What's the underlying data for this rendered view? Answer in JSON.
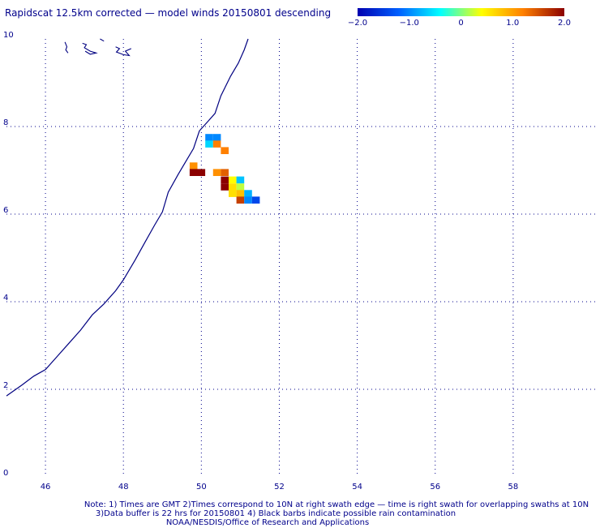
{
  "title": "Rapidscat 12.5km corrected — model winds 20150801 descending",
  "colorbar": {
    "tick_labels": [
      "−2.0",
      "−1.0",
      "0",
      "1.0",
      "2.0"
    ],
    "tick_values": [
      -2.0,
      -1.0,
      0,
      1.0,
      2.0
    ],
    "min": -2.0,
    "max": 2.0,
    "colors": [
      "#0000b0",
      "#0060ff",
      "#00ffff",
      "#ffff00",
      "#ff8000",
      "#8b0000"
    ]
  },
  "axes": {
    "x_ticks": [
      "46",
      "48",
      "50",
      "52",
      "54",
      "56",
      "58"
    ],
    "y_ticks": [
      "0",
      "2",
      "4",
      "6",
      "8",
      "10"
    ],
    "x_range": [
      45,
      59.5
    ],
    "y_range": [
      0,
      10
    ],
    "grid": true
  },
  "notes": {
    "line1": "Note: 1) Times are GMT 2)Times correspond to 10N at right swath edge — time is right swath for overlapping swaths at 10N",
    "line2": "3)Data buffer is 22 hrs for 20150801 4) Black barbs indicate possible rain contamination",
    "line3": "NOAA/NESDIS/Office of Research and Applications"
  },
  "coastline_lonlat": [
    [
      45.0,
      1.85
    ],
    [
      45.4,
      2.1
    ],
    [
      45.7,
      2.3
    ],
    [
      46.0,
      2.45
    ],
    [
      46.3,
      2.75
    ],
    [
      46.6,
      3.05
    ],
    [
      46.9,
      3.35
    ],
    [
      47.2,
      3.7
    ],
    [
      47.5,
      3.95
    ],
    [
      47.8,
      4.25
    ],
    [
      48.0,
      4.5
    ],
    [
      48.3,
      4.95
    ],
    [
      48.55,
      5.35
    ],
    [
      48.8,
      5.75
    ],
    [
      49.0,
      6.05
    ],
    [
      49.15,
      6.5
    ],
    [
      49.4,
      6.9
    ],
    [
      49.6,
      7.2
    ],
    [
      49.8,
      7.5
    ],
    [
      49.95,
      7.9
    ],
    [
      50.15,
      8.1
    ],
    [
      50.35,
      8.3
    ],
    [
      50.5,
      8.7
    ],
    [
      50.75,
      9.15
    ],
    [
      50.95,
      9.45
    ],
    [
      51.1,
      9.75
    ],
    [
      51.2,
      10.0
    ]
  ],
  "islands_lonlat": [
    [
      [
        46.5,
        9.93
      ],
      [
        46.55,
        9.82
      ],
      [
        46.52,
        9.75
      ],
      [
        46.58,
        9.68
      ]
    ],
    [
      [
        46.95,
        9.9
      ],
      [
        47.05,
        9.87
      ],
      [
        47.0,
        9.8
      ],
      [
        47.15,
        9.72
      ],
      [
        47.3,
        9.68
      ],
      [
        47.15,
        9.65
      ],
      [
        47.02,
        9.72
      ]
    ],
    [
      [
        47.8,
        9.82
      ],
      [
        47.9,
        9.78
      ],
      [
        47.82,
        9.7
      ],
      [
        48.0,
        9.64
      ],
      [
        48.15,
        9.62
      ],
      [
        48.05,
        9.72
      ],
      [
        48.2,
        9.78
      ]
    ],
    [
      [
        47.4,
        10.0
      ],
      [
        47.5,
        9.95
      ]
    ]
  ],
  "cells": [
    {
      "lon": 50.2,
      "lat": 7.75,
      "value": -1.0
    },
    {
      "lon": 50.4,
      "lat": 7.75,
      "value": -1.0
    },
    {
      "lon": 50.2,
      "lat": 7.6,
      "value": -0.6
    },
    {
      "lon": 50.4,
      "lat": 7.6,
      "value": 1.2
    },
    {
      "lon": 50.6,
      "lat": 7.45,
      "value": 1.2
    },
    {
      "lon": 49.8,
      "lat": 7.1,
      "value": 1.1
    },
    {
      "lon": 49.8,
      "lat": 6.95,
      "value": 2.0
    },
    {
      "lon": 50.0,
      "lat": 6.95,
      "value": 2.0
    },
    {
      "lon": 50.4,
      "lat": 6.95,
      "value": 1.1
    },
    {
      "lon": 50.6,
      "lat": 6.95,
      "value": 1.4
    },
    {
      "lon": 50.6,
      "lat": 6.78,
      "value": 2.0
    },
    {
      "lon": 50.8,
      "lat": 6.78,
      "value": 0.4
    },
    {
      "lon": 51.0,
      "lat": 6.78,
      "value": -0.7
    },
    {
      "lon": 50.6,
      "lat": 6.62,
      "value": 2.0
    },
    {
      "lon": 50.8,
      "lat": 6.62,
      "value": 0.6
    },
    {
      "lon": 51.0,
      "lat": 6.62,
      "value": 0.2
    },
    {
      "lon": 50.8,
      "lat": 6.47,
      "value": 0.6
    },
    {
      "lon": 51.0,
      "lat": 6.47,
      "value": 0.8
    },
    {
      "lon": 51.2,
      "lat": 6.47,
      "value": -0.8
    },
    {
      "lon": 51.0,
      "lat": 6.32,
      "value": 1.6
    },
    {
      "lon": 51.2,
      "lat": 6.32,
      "value": -1.0
    },
    {
      "lon": 51.4,
      "lat": 6.32,
      "value": -1.4
    }
  ]
}
